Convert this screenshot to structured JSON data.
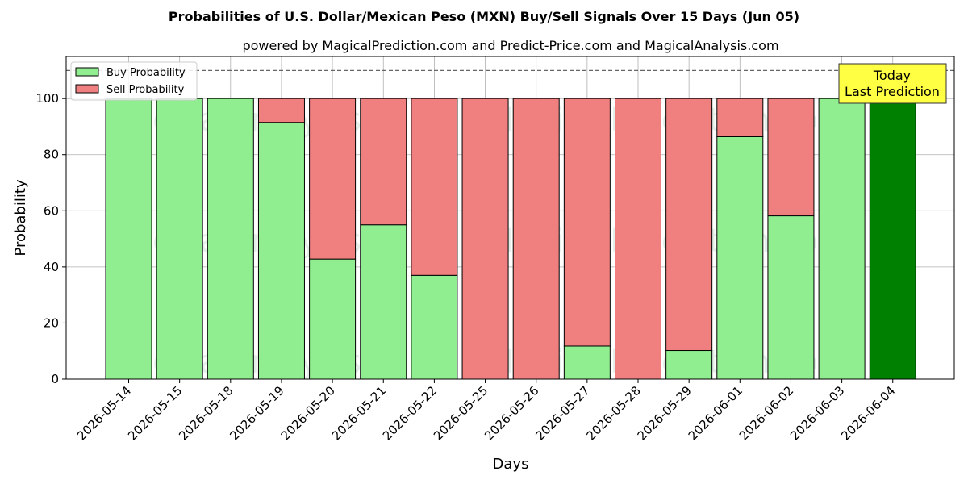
{
  "chart_data": {
    "type": "bar",
    "stacked": true,
    "title": "Probabilities of U.S. Dollar/Mexican Peso (MXN) Buy/Sell Signals Over 15 Days (Jun 05)",
    "subtitle": "powered by MagicalPrediction.com and Predict-Price.com and MagicalAnalysis.com",
    "xlabel": "Days",
    "ylabel": "Probability",
    "ylim": [
      0,
      115
    ],
    "yticks": [
      0,
      20,
      40,
      60,
      80,
      100
    ],
    "grid": true,
    "legend_placement": "top-left",
    "reference_line": 110,
    "categories": [
      "2026-05-14",
      "2026-05-15",
      "2026-05-18",
      "2026-05-19",
      "2026-05-20",
      "2026-05-21",
      "2026-05-22",
      "2026-05-25",
      "2026-05-26",
      "2026-05-27",
      "2026-05-28",
      "2026-05-29",
      "2026-06-01",
      "2026-06-02",
      "2026-06-03",
      "2026-06-04"
    ],
    "series": [
      {
        "name": "Buy Probability",
        "color": "#90ee90",
        "values": [
          100,
          100,
          100,
          91.5,
          42.8,
          55,
          37,
          0,
          0,
          11.8,
          0,
          10.2,
          86.4,
          58.2,
          100,
          100
        ]
      },
      {
        "name": "Sell Probability",
        "color": "#f08080",
        "values": [
          0,
          0,
          0,
          8.5,
          57.2,
          45,
          63,
          100,
          100,
          88.2,
          100,
          89.8,
          13.6,
          41.8,
          0,
          0
        ]
      }
    ],
    "highlight": {
      "index": 15,
      "color": "#008000"
    },
    "annotation": {
      "lines": [
        "Today",
        "Last Prediction"
      ],
      "background": "#ffff44"
    },
    "watermarks": [
      "MagicalAnalysis.com",
      "MagicalPrediction.com"
    ]
  }
}
